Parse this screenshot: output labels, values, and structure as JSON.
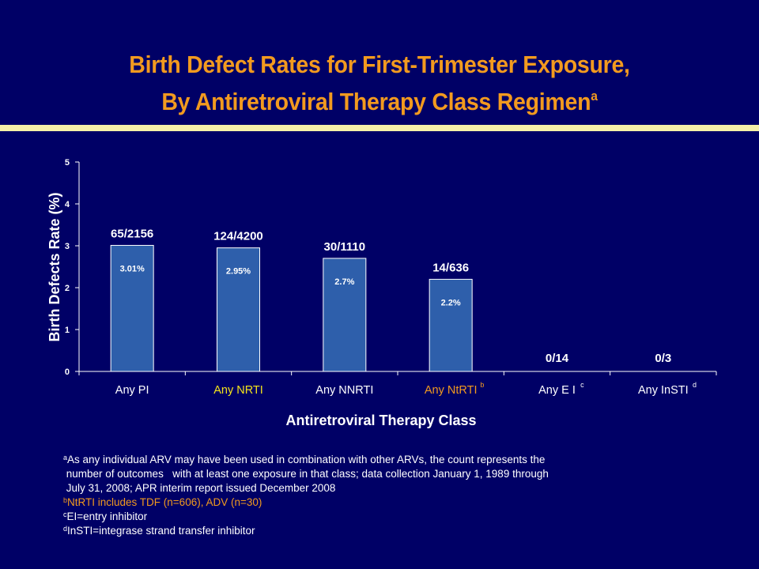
{
  "title": {
    "line1": "Birth Defect Rates for First-Trimester Exposure,",
    "line2": "By Antiretroviral Therapy Class Regimen",
    "sup": "a"
  },
  "colors": {
    "background": "#000066",
    "title": "#f29a1f",
    "bar": "#2e5fab",
    "highlight_label": "#f5e41a",
    "ntrti_label": "#f29a1f",
    "rule": "#f5f0a8"
  },
  "chart_data": {
    "type": "bar",
    "categories": [
      "Any PI",
      "Any NRTI",
      "Any NNRTI",
      "Any NtRTI",
      "Any E I",
      "Any InSTI"
    ],
    "category_superscripts": [
      "",
      "",
      "",
      "b",
      "c",
      "d"
    ],
    "values": [
      3.01,
      2.95,
      2.7,
      2.2,
      0,
      0
    ],
    "bar_labels": [
      "3.01%",
      "2.95%",
      "2.7%",
      "2.2%",
      "",
      ""
    ],
    "count_labels": [
      "65/2156",
      "124/4200",
      "30/1110",
      "14/636",
      "0/14",
      "0/3"
    ],
    "xlabel": "Antiretroviral Therapy Class",
    "ylabel": "Birth Defects Rate (%)",
    "ylim": [
      0,
      5
    ],
    "yticks": [
      "0",
      "1",
      "2",
      "3",
      "4",
      "5"
    ],
    "grid": false
  },
  "footnotes": {
    "a_sup": "a",
    "a_line1": "As any individual ARV may have been used in combination with other ARVs, the count represents the",
    "a_line2": " number of outcomes   with at least one exposure in that class; data collection January 1, 1989 through",
    "a_line3": " July 31, 2008; APR interim report issued December 2008",
    "b_sup": "b",
    "b_text": "NtRTI includes TDF (n=606), ADV (n=30)",
    "c_sup": "c",
    "c_text": "EI=entry inhibitor",
    "d_sup": "d",
    "d_text": "InSTI=integrase strand transfer inhibitor"
  }
}
